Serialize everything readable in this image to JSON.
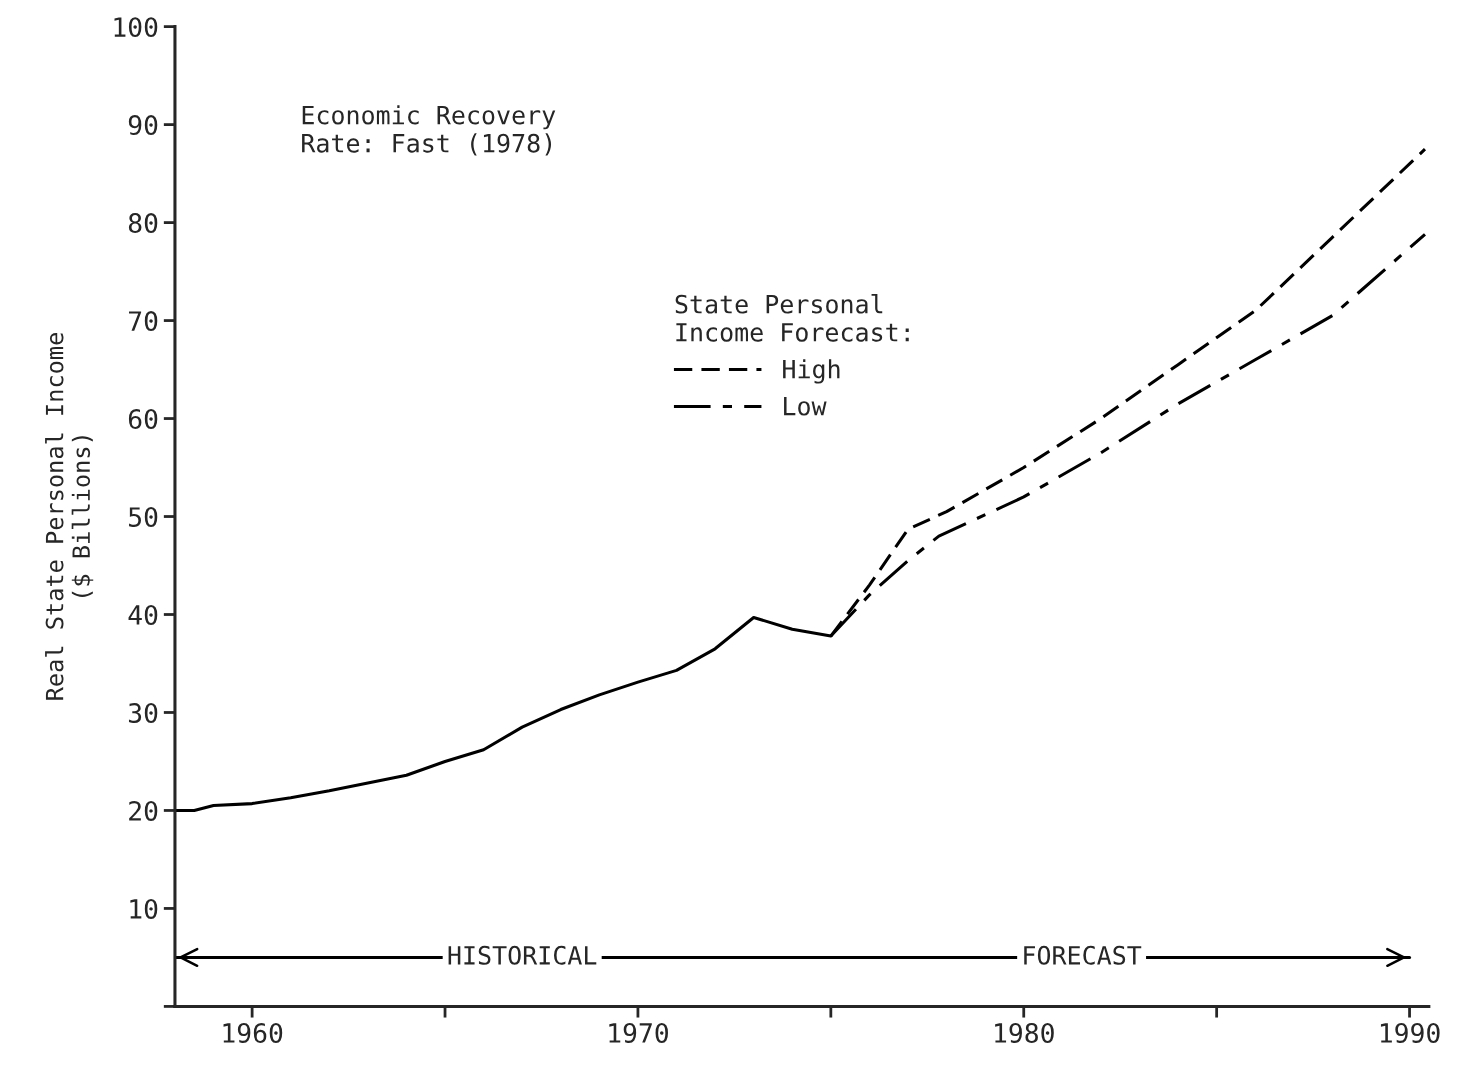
{
  "chart_data": {
    "type": "line",
    "ylabel": "Real State Personal Income\n($ Billions)",
    "xlim": [
      1958,
      1990.5
    ],
    "ylim": [
      0,
      100
    ],
    "xticks": [
      1960,
      {
        "value": 1965,
        "label": null
      },
      1970,
      {
        "value": 1975,
        "label": null
      },
      1980,
      {
        "value": 1985,
        "label": null
      },
      1990
    ],
    "yticks": [
      {
        "value": 0,
        "label": null
      },
      10,
      20,
      30,
      40,
      50,
      60,
      70,
      80,
      90,
      100
    ],
    "legend": "top left",
    "legend_title": "State Personal\nIncome Forecast:",
    "grid": false,
    "series": [
      {
        "color": "#000000",
        "line_style": "solid",
        "x": [
          1958,
          1958.5,
          1959,
          1960,
          1961,
          1962,
          1963,
          1964,
          1965,
          1966,
          1967,
          1968,
          1969,
          1970,
          1971,
          1972,
          1973,
          1974,
          1975
        ],
        "values": [
          20,
          20,
          20.5,
          20.7,
          21.3,
          22,
          22.8,
          23.6,
          25,
          26.2,
          28.5,
          30.3,
          31.8,
          33.1,
          34.3,
          36.5,
          39.7,
          38.5,
          37.8
        ]
      },
      {
        "name": "High",
        "color": "#000000",
        "line_style": "dashed",
        "x": [
          1975,
          1976,
          1977,
          1978,
          1980,
          1982,
          1984,
          1986,
          1988,
          1990.4
        ],
        "values": [
          37.8,
          43,
          48.7,
          50.5,
          55,
          60,
          65.5,
          71,
          78.5,
          87.5
        ]
      },
      {
        "color": "#000000",
        "line_style": "solid",
        "x": [
          1958,
          1975,
          1990
        ],
        "values": [
          5,
          5,
          5
        ]
      },
      {
        "name": "Low",
        "color": "#000000",
        "line_style": "dashdot",
        "x": [
          1975,
          1976,
          1977,
          1977.8,
          1980,
          1982,
          1984,
          1986,
          1988,
          1990.4
        ],
        "values": [
          37.8,
          42,
          45.5,
          48,
          52,
          56.5,
          61.5,
          66,
          70.5,
          78.8
        ]
      }
    ],
    "annotations": [
      "Economic Recovery\nRate: Fast (1978)",
      {
        "text": "HISTORICAL",
        "x": 1967,
        "y": 5
      },
      {
        "text": "FORECAST",
        "x": 1981.5,
        "y": 5
      }
    ]
  }
}
